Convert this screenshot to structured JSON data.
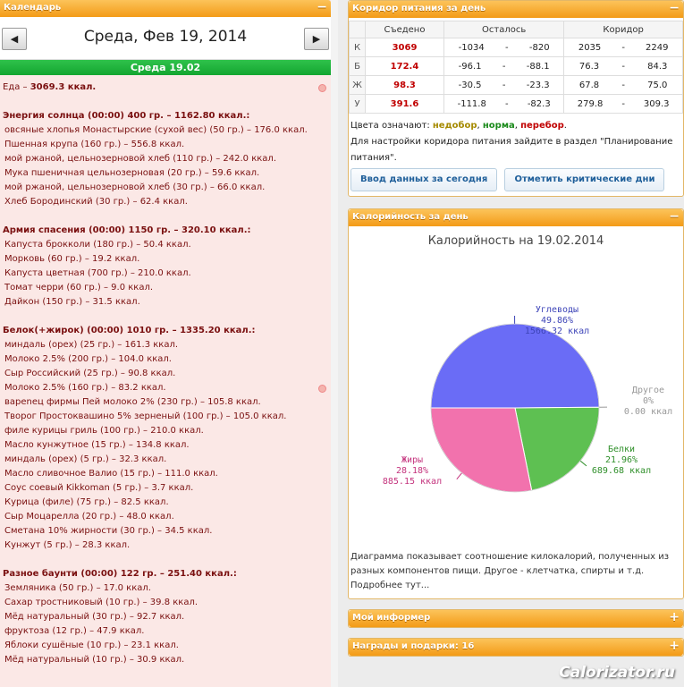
{
  "calendar": {
    "title": "Календарь",
    "toggle": "−",
    "prev_label": "◀",
    "next_label": "▶",
    "date_title": "Среда, Фев 19, 2014",
    "day_bar": "Среда 19.02"
  },
  "food": {
    "total_prefix": "Еда – ",
    "total_value": "3069.3 ккал.",
    "meals": [
      {
        "header": "Энергия солнца (00:00) 400 гр. – 1162.80 ккал.:",
        "items": [
          "овсяные хлопья Монастырские (сухой вес) (50 гр.) – 176.0 ккал.",
          "Пшенная крупа (160 гр.) – 556.8 ккал.",
          "мой ржаной, цельнозерновой хлеб (110 гр.) – 242.0 ккал.",
          "Мука пшеничная цельнозерновая (20 гр.) – 59.6 ккал.",
          "мой ржаной, цельнозерновой хлеб (30 гр.) – 66.0 ккал.",
          "Хлеб Бородинский (30 гр.) – 62.4 ккал."
        ]
      },
      {
        "header": "Армия спасения (00:00) 1150 гр. – 320.10 ккал.:",
        "items": [
          "Капуста брокколи (180 гр.) – 50.4 ккал.",
          "Морковь (60 гр.) – 19.2 ккал.",
          "Капуста цветная (700 гр.) – 210.0 ккал.",
          "Томат черри (60 гр.) – 9.0 ккал.",
          "Дайкон (150 гр.) – 31.5 ккал."
        ]
      },
      {
        "header": "Белок(+жирок) (00:00) 1010 гр. – 1335.20 ккал.:",
        "items": [
          "миндаль (орех) (25 гр.) – 161.3 ккал.",
          "Молоко 2.5% (200 гр.) – 104.0 ккал.",
          "Сыр Российский (25 гр.) – 90.8 ккал.",
          "Молоко 2.5% (160 гр.) – 83.2 ккал.",
          "вареnец фирмы Пей молоко 2% (230 гр.) – 105.8 ккал.",
          "Творог Простоквашино 5% зерненый (100 гр.) – 105.0 ккал.",
          "филе курицы гриль (100 гр.) – 210.0 ккал.",
          "Масло кунжутное (15 гр.) – 134.8 ккал.",
          "миндаль (орех) (5 гр.) – 32.3 ккал.",
          "Масло сливочное Валио (15 гр.) – 111.0 ккал.",
          "Соус соевый Kikkoman (5 гр.) – 3.7 ккал.",
          "Курица (филе) (75 гр.) – 82.5 ккал.",
          "Сыр Моцарелла (20 гр.) – 48.0 ккал.",
          "Сметана 10% жирности (30 гр.) – 34.5 ккал.",
          "Кунжут (5 гр.) – 28.3 ккал."
        ]
      },
      {
        "header": "Разное баунти (00:00) 122 гр. – 251.40 ккал.:",
        "items": [
          "Земляника (50 гр.) – 17.0 ккал.",
          "Сахар тростниковый (10 гр.) – 39.8 ккал.",
          "Мёд натуральный (30 гр.) – 92.7 ккал.",
          "фруктоза (12 гр.) – 47.9 ккал.",
          "Яблоки сушёные (10 гр.) – 23.1 ккал.",
          "Мёд натуральный (10 гр.) – 30.9 ккал."
        ]
      }
    ]
  },
  "corridor": {
    "title": "Коридор питания за день",
    "toggle": "−",
    "headers": [
      "",
      "Съедено",
      "Осталось",
      "Коридор"
    ],
    "rows": [
      {
        "label": "К",
        "eaten": "3069",
        "left_from": "-1034",
        "left_to": "-820",
        "corr_from": "2035",
        "corr_to": "2249"
      },
      {
        "label": "Б",
        "eaten": "172.4",
        "left_from": "-96.1",
        "left_to": "-88.1",
        "corr_from": "76.3",
        "corr_to": "84.3"
      },
      {
        "label": "Ж",
        "eaten": "98.3",
        "left_from": "-30.5",
        "left_to": "-23.3",
        "corr_from": "67.8",
        "corr_to": "75.0"
      },
      {
        "label": "У",
        "eaten": "391.6",
        "left_from": "-111.8",
        "left_to": "-82.3",
        "corr_from": "279.8",
        "corr_to": "309.3"
      }
    ],
    "dash": "-",
    "legend_prefix": "Цвета означают: ",
    "legend_under": "недобор",
    "legend_norm": "норма",
    "legend_over": "перебор",
    "legend_sep": ", ",
    "legend_end": ".",
    "setup_note": "Для настройки коридора питания зайдите в раздел \"Планирование питания\".",
    "btn_today": "Ввод данных за сегодня",
    "btn_critical": "Отметить критические дни"
  },
  "calories": {
    "title": "Калорийность за день",
    "toggle": "−",
    "description": "Диаграмма показывает соотношение килокалорий, полученных из разных компонентов пищи. Другое - клетчатка, спирты и т.д. Подробнее тут..."
  },
  "chart_data": {
    "type": "pie",
    "title": "Калорийность на 19.02.2014",
    "slices": [
      {
        "name": "Углеводы",
        "percent": "49.86%",
        "value": 1566.32,
        "value_label": "1566.32 ккал",
        "color": "#6a6cf6",
        "label_color": "#3d44b8"
      },
      {
        "name": "Другое",
        "percent": "0%",
        "value": 0.0,
        "value_label": "0.00 ккал",
        "color": "#999999",
        "label_color": "#999999"
      },
      {
        "name": "Белки",
        "percent": "21.96%",
        "value": 689.68,
        "value_label": "689.68 ккал",
        "color": "#5ec052",
        "label_color": "#2f8f2a"
      },
      {
        "name": "Жиры",
        "percent": "28.18%",
        "value": 885.15,
        "value_label": "885.15 ккал",
        "color": "#f272ad",
        "label_color": "#c4337d"
      }
    ]
  },
  "informer": {
    "title": "Мой информер",
    "toggle": "+"
  },
  "awards": {
    "title": "Награды и подарки: 16",
    "toggle": "+"
  },
  "watermark": "Calorizator.ru"
}
